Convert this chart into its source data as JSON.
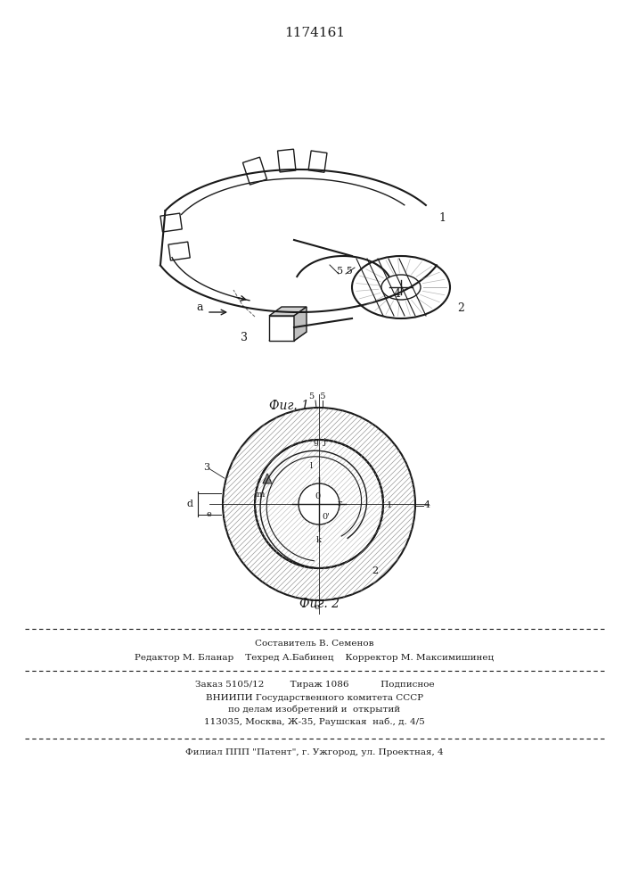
{
  "patent_number": "1174161",
  "fig1_caption": "Фиг. 1",
  "fig2_caption": "Фиг. 2",
  "footer_line1": "Составитель В. Семенов",
  "footer_line2": "Редактор М. Бланар    Техред А.Бабинец    Корректор М. Максимишинец",
  "footer_line3": "Заказ 5105/12         Тираж 1086           Подписное",
  "footer_line4": "ВНИИПИ Государственного комитета СССР",
  "footer_line5": "по делам изобретений и  открытий",
  "footer_line6": "113035, Москва, Ж-35, Раушская  наб., д. 4/5",
  "footer_line7": "Филиал ППП \"Патент\", г. Ужгород, ул. Проектная, 4",
  "bg_color": "#ffffff",
  "line_color": "#1a1a1a"
}
